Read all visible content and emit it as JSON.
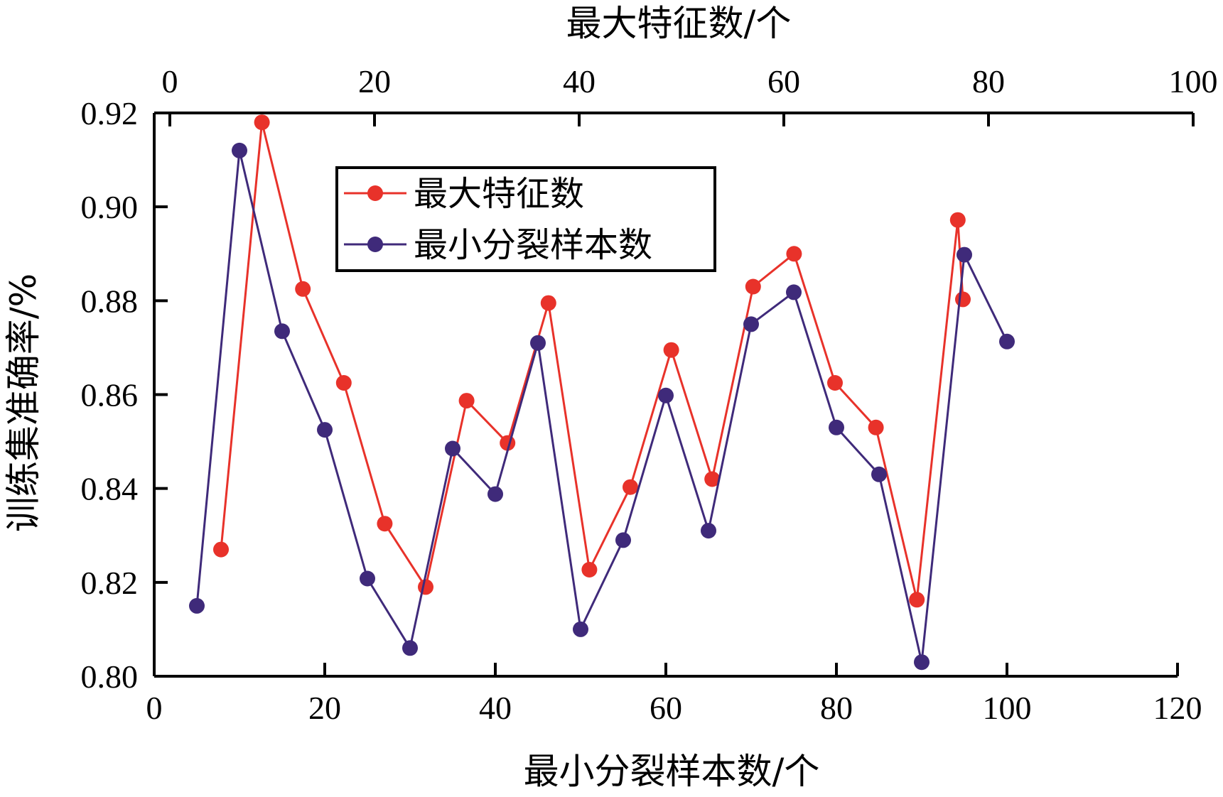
{
  "chart_data": {
    "type": "line",
    "x_bottom_label": "最小分裂样本数/个",
    "x_top_label": "最大特征数/个",
    "y_label": "训练集准确率/%",
    "x_bottom_range": [
      0,
      120
    ],
    "x_bottom_ticks": [
      "0",
      "20",
      "40",
      "60",
      "80",
      "100",
      "120"
    ],
    "x_top_range": [
      0,
      100
    ],
    "x_top_ticks": [
      "0",
      "20",
      "40",
      "60",
      "80",
      "100"
    ],
    "y_range": [
      0.8,
      0.92
    ],
    "y_ticks": [
      "0.80",
      "0.82",
      "0.84",
      "0.86",
      "0.88",
      "0.90",
      "0.92"
    ],
    "grid": false,
    "legend_position": "upper-center",
    "series": [
      {
        "name": "最大特征数",
        "axis": "top",
        "color": "#e8322a",
        "x": [
          5,
          9,
          13,
          17,
          21,
          25,
          29,
          33,
          37,
          41,
          45,
          49,
          53,
          57,
          61,
          65,
          69,
          73,
          77,
          77.5
        ],
        "y": [
          0.827,
          0.918,
          0.8825,
          0.8625,
          0.8325,
          0.819,
          0.8587,
          0.8497,
          0.8795,
          0.8227,
          0.8403,
          0.8695,
          0.842,
          0.883,
          0.89,
          0.8625,
          0.853,
          0.8163,
          0.8972,
          0.8803
        ]
      },
      {
        "name": "最小分裂样本数",
        "axis": "bottom",
        "color": "#3f2a7a",
        "x": [
          5,
          10,
          15,
          20,
          25,
          30,
          35,
          40,
          45,
          50,
          55,
          60,
          65,
          70,
          75,
          80,
          85,
          90,
          95,
          100
        ],
        "y": [
          0.815,
          0.912,
          0.8735,
          0.8525,
          0.8208,
          0.806,
          0.8485,
          0.8388,
          0.871,
          0.81,
          0.829,
          0.8598,
          0.831,
          0.875,
          0.8818,
          0.853,
          0.843,
          0.803,
          0.8898,
          0.8713
        ]
      }
    ]
  }
}
